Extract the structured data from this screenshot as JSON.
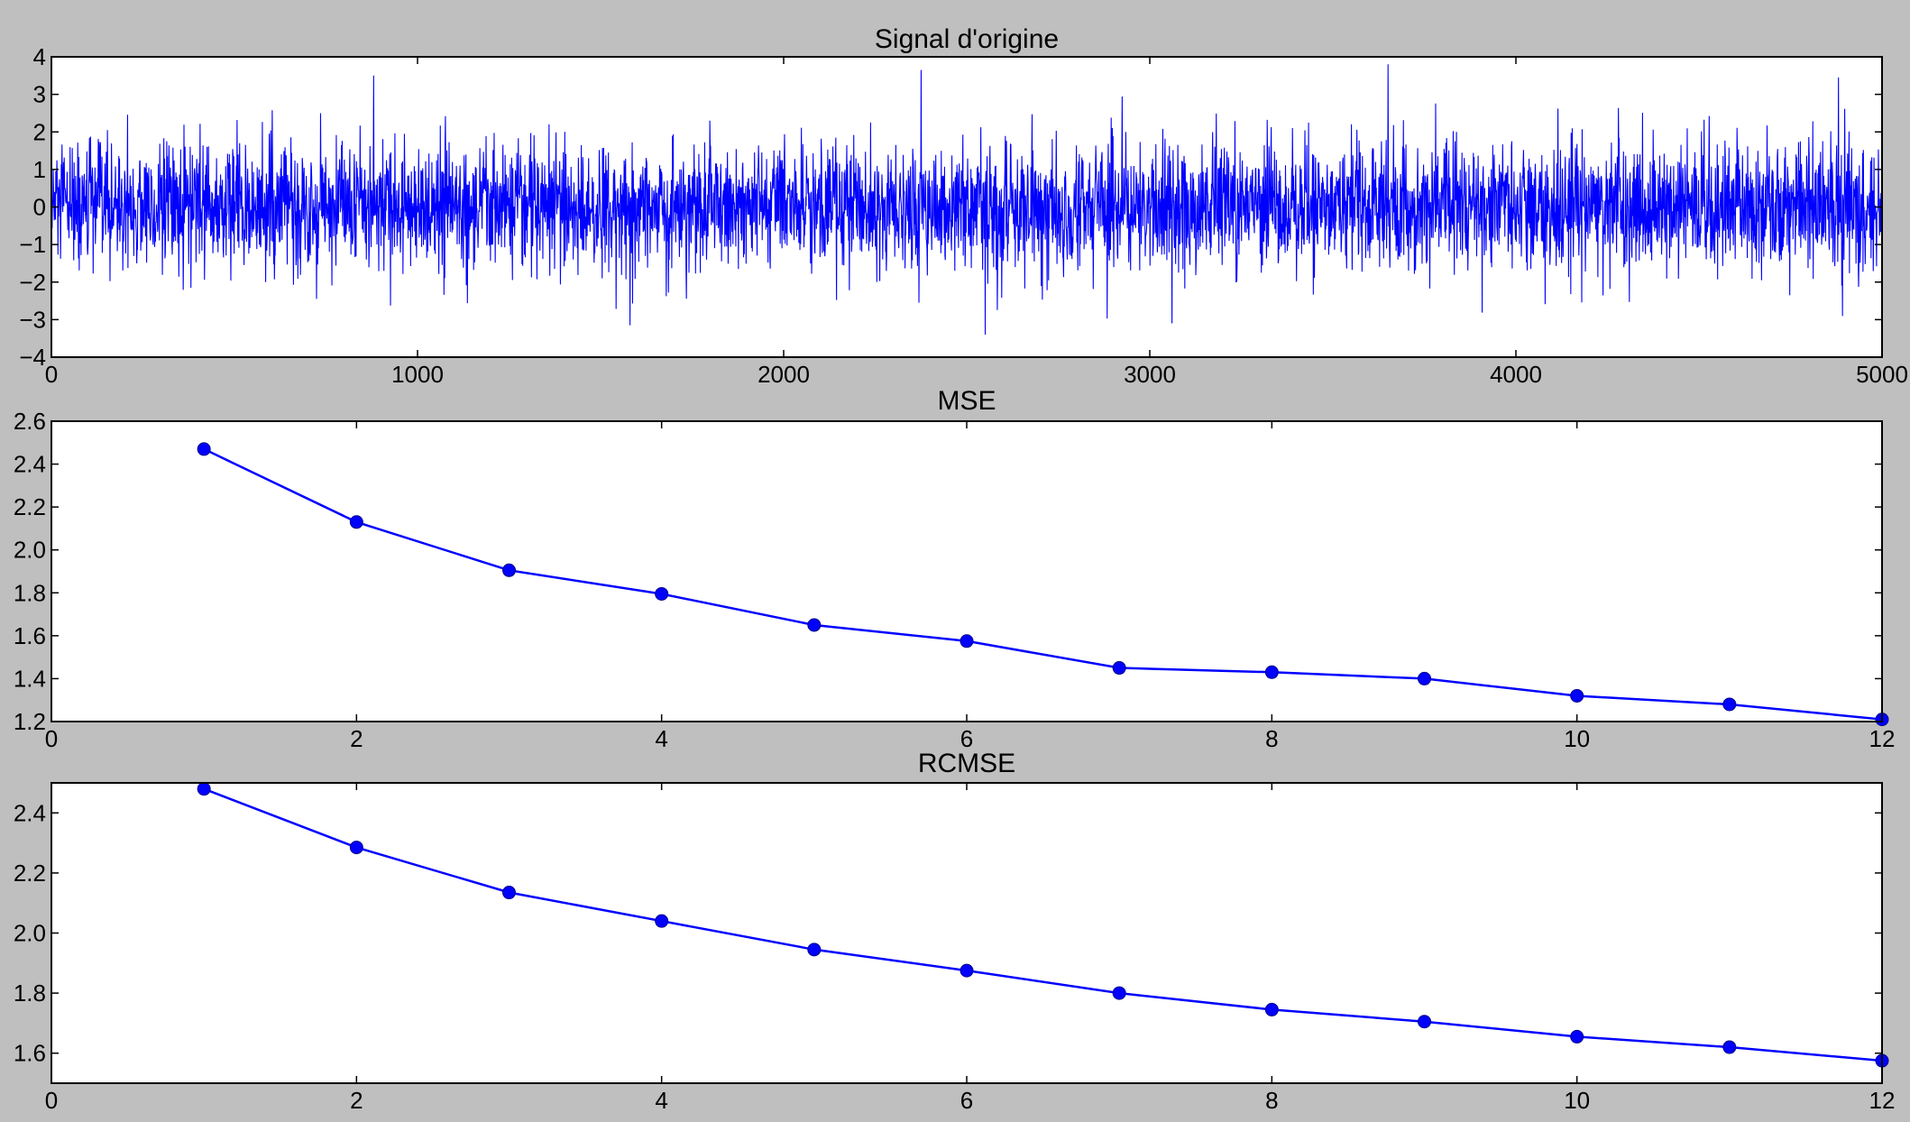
{
  "figure_background": "#bfbfbf",
  "line_color": "#0000ff",
  "chart_data": [
    {
      "type": "line",
      "title": "Signal d'origine",
      "xlabel": "",
      "ylabel": "",
      "xlim": [
        0,
        5000
      ],
      "ylim": [
        -4,
        4
      ],
      "xticks": [
        0,
        1000,
        2000,
        3000,
        4000,
        5000
      ],
      "yticks": [
        -4,
        -3,
        -2,
        -1,
        0,
        1,
        2,
        3,
        4
      ],
      "xtick_labels": [
        "0",
        "1000",
        "2000",
        "3000",
        "4000",
        "5000"
      ],
      "ytick_labels": [
        "−4",
        "−3",
        "−2",
        "−1",
        "0",
        "1",
        "2",
        "3",
        "4"
      ],
      "grid": false,
      "markers": false,
      "series": [
        {
          "n_points": 5000,
          "description_values": "white noise, mean 0, std ~1",
          "notable_peaks": [
            {
              "x": 880,
              "y": 3.5
            },
            {
              "x": 2375,
              "y": 3.65
            },
            {
              "x": 2550,
              "y": -3.4
            },
            {
              "x": 3650,
              "y": 3.8
            },
            {
              "x": 1580,
              "y": -3.15
            },
            {
              "x": 3060,
              "y": -3.1
            },
            {
              "x": 4880,
              "y": 3.45
            }
          ]
        }
      ]
    },
    {
      "type": "line",
      "title": "MSE",
      "xlabel": "",
      "ylabel": "",
      "xlim": [
        0,
        12
      ],
      "ylim": [
        1.2,
        2.6
      ],
      "xticks": [
        0,
        2,
        4,
        6,
        8,
        10,
        12
      ],
      "yticks": [
        1.2,
        1.4,
        1.6,
        1.8,
        2.0,
        2.2,
        2.4,
        2.6
      ],
      "xtick_labels": [
        "0",
        "2",
        "4",
        "6",
        "8",
        "10",
        "12"
      ],
      "ytick_labels": [
        "1.2",
        "1.4",
        "1.6",
        "1.8",
        "2.0",
        "2.2",
        "2.4",
        "2.6"
      ],
      "grid": false,
      "markers": true,
      "series": [
        {
          "x": [
            1,
            2,
            3,
            4,
            5,
            6,
            7,
            8,
            9,
            10,
            11,
            12
          ],
          "values": [
            2.47,
            2.13,
            1.905,
            1.795,
            1.65,
            1.575,
            1.45,
            1.43,
            1.4,
            1.32,
            1.28,
            1.21
          ]
        }
      ]
    },
    {
      "type": "line",
      "title": "RCMSE",
      "xlabel": "",
      "ylabel": "",
      "xlim": [
        0,
        12
      ],
      "ylim": [
        1.5,
        2.5
      ],
      "xticks": [
        0,
        2,
        4,
        6,
        8,
        10,
        12
      ],
      "yticks": [
        1.6,
        1.8,
        2.0,
        2.2,
        2.4
      ],
      "xtick_labels": [
        "0",
        "2",
        "4",
        "6",
        "8",
        "10",
        "12"
      ],
      "ytick_labels": [
        "1.6",
        "1.8",
        "2.0",
        "2.2",
        "2.4"
      ],
      "grid": false,
      "markers": true,
      "series": [
        {
          "x": [
            1,
            2,
            3,
            4,
            5,
            6,
            7,
            8,
            9,
            10,
            11,
            12
          ],
          "values": [
            2.48,
            2.285,
            2.135,
            2.04,
            1.945,
            1.875,
            1.8,
            1.745,
            1.705,
            1.655,
            1.62,
            1.575
          ]
        }
      ]
    }
  ]
}
